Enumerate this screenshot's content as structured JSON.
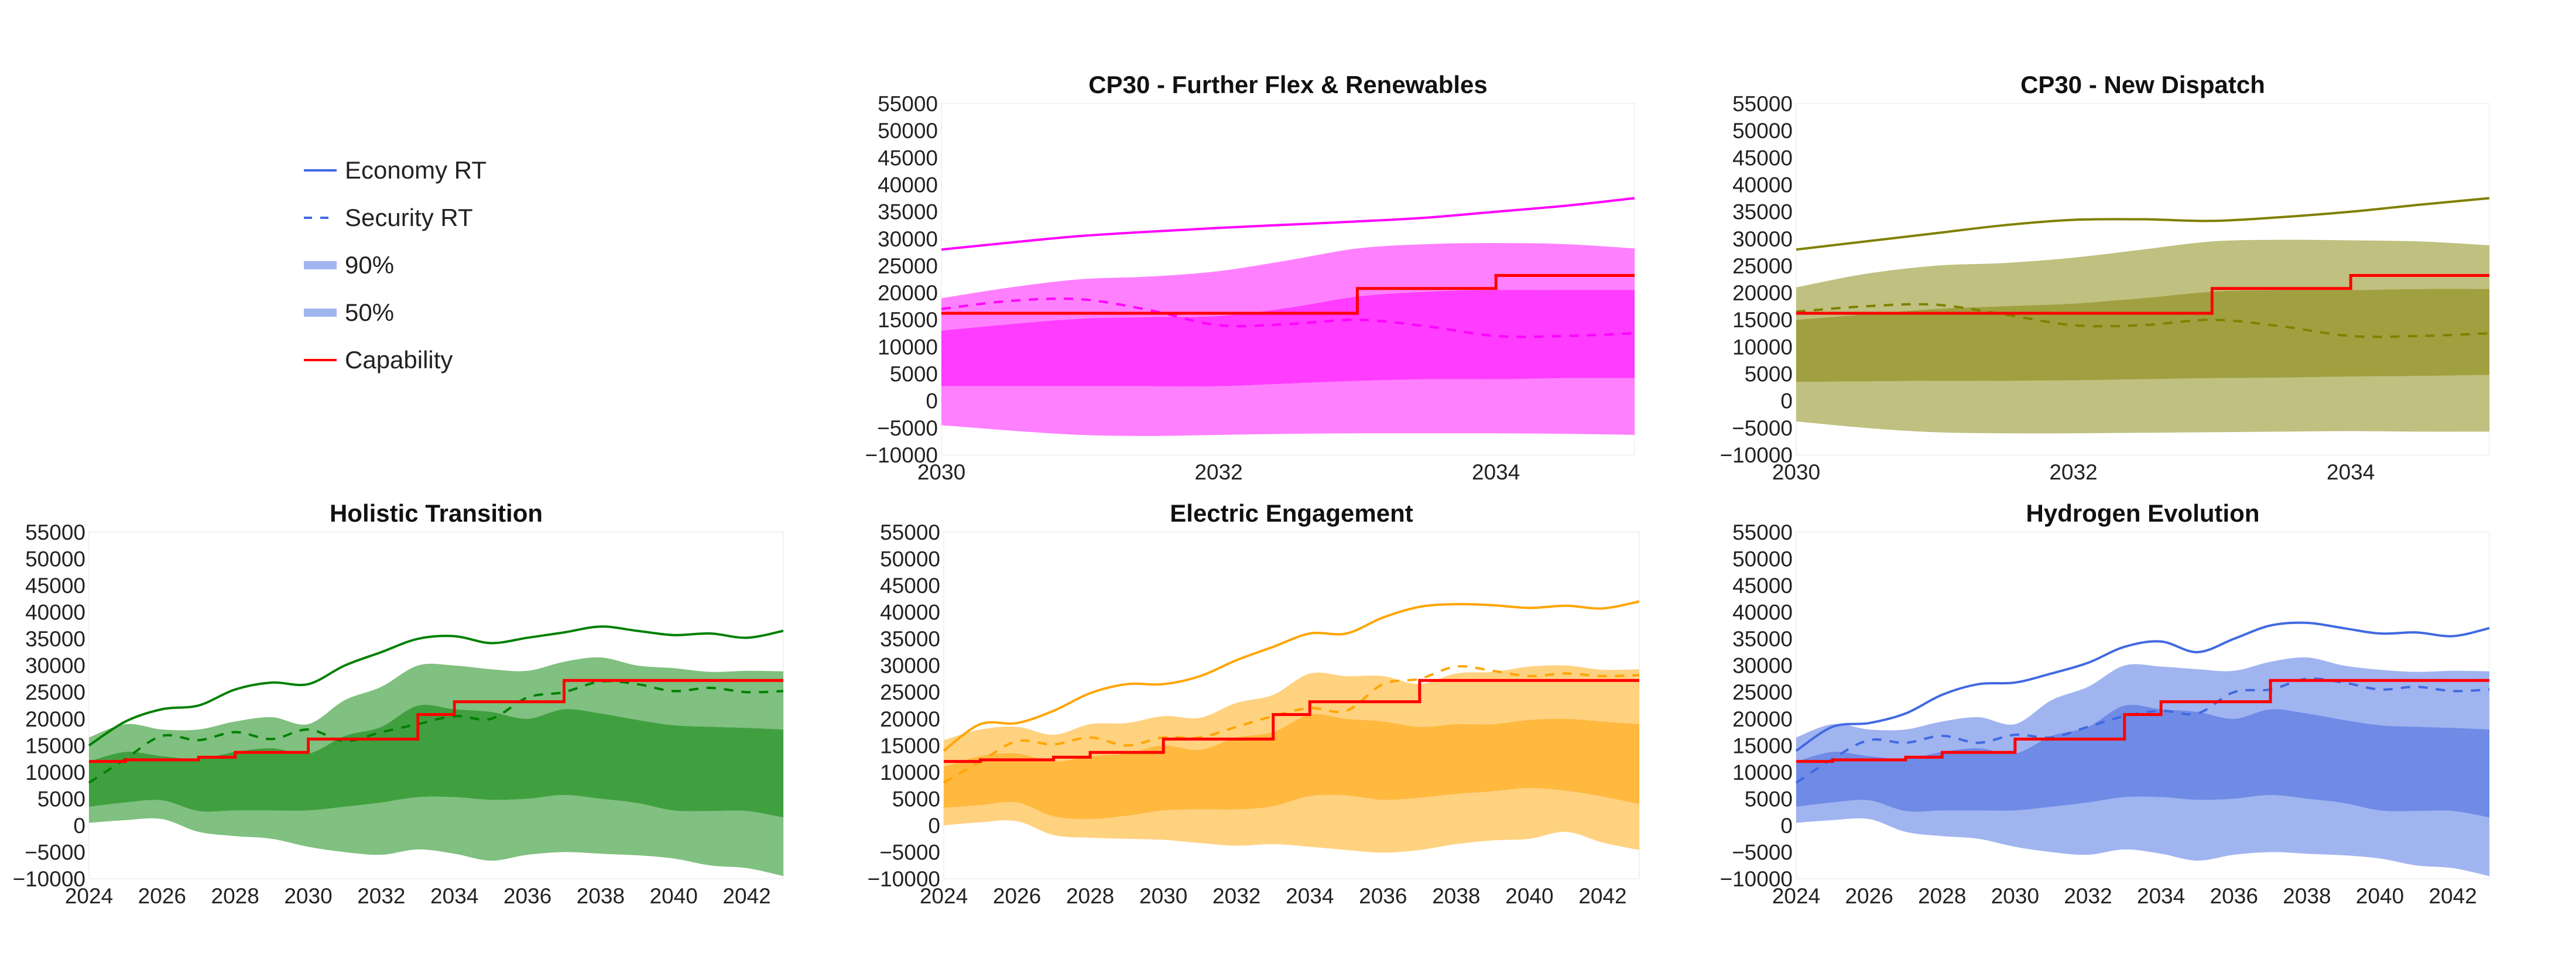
{
  "legend": {
    "swatch_color": "#4169e1",
    "band_color": "#a0b4f0",
    "capability_color": "#ff0000",
    "items": [
      {
        "label": "Economy RT",
        "style": "solid-line"
      },
      {
        "label": "Security RT",
        "style": "dashed-line"
      },
      {
        "label": "90%",
        "style": "band"
      },
      {
        "label": "50%",
        "style": "band"
      },
      {
        "label": "Capability",
        "style": "step-line"
      }
    ]
  },
  "chart_data": [
    {
      "type": "area",
      "title": "CP30 - Further Flex & Renewables",
      "color": "#ff00ff",
      "band90_color": "#ff80ff",
      "band50_color": "#ff3cff",
      "xlim": [
        2030,
        2035
      ],
      "ylim": [
        -10000,
        55000
      ],
      "xticks": [
        "2030",
        "2032",
        "2034"
      ],
      "yticks": [
        "55000",
        "50000",
        "45000",
        "40000",
        "35000",
        "30000",
        "25000",
        "20000",
        "15000",
        "10000",
        "5000",
        "0",
        "−5000",
        "−10000"
      ],
      "x": [
        2030,
        2030.5,
        2031,
        2031.5,
        2032,
        2032.5,
        2033,
        2033.5,
        2034,
        2034.5,
        2035
      ],
      "economy_rt": [
        28000,
        29300,
        30500,
        31300,
        32000,
        32600,
        33200,
        33900,
        35000,
        36100,
        37500
      ],
      "security_rt": [
        17000,
        18500,
        18800,
        16800,
        14000,
        14200,
        15000,
        13800,
        12000,
        12000,
        12500
      ],
      "band90_upper": [
        19000,
        21000,
        22500,
        23000,
        24000,
        26000,
        28200,
        29000,
        29200,
        29000,
        28200
      ],
      "band50_upper": [
        13000,
        14200,
        15200,
        15500,
        15700,
        17200,
        19300,
        20200,
        20500,
        20500,
        20500
      ],
      "band50_lower": [
        2700,
        2700,
        2700,
        2700,
        2700,
        3200,
        3700,
        4000,
        4000,
        4200,
        4200
      ],
      "band90_lower": [
        -4500,
        -5500,
        -6300,
        -6500,
        -6300,
        -6100,
        -6000,
        -6000,
        -6000,
        -6100,
        -6300
      ],
      "capability": {
        "x": [
          2030,
          2033,
          2034,
          2035
        ],
        "values": [
          16200,
          20800,
          23200,
          23200
        ]
      }
    },
    {
      "type": "area",
      "title": "CP30 - New Dispatch",
      "color": "#808000",
      "band90_color": "#c0c080",
      "band50_color": "#a0a040",
      "xlim": [
        2030,
        2035
      ],
      "ylim": [
        -10000,
        55000
      ],
      "xticks": [
        "2030",
        "2032",
        "2034"
      ],
      "yticks": [
        "55000",
        "50000",
        "45000",
        "40000",
        "35000",
        "30000",
        "25000",
        "20000",
        "15000",
        "10000",
        "5000",
        "0",
        "−5000",
        "−10000"
      ],
      "x": [
        2030,
        2030.5,
        2031,
        2031.5,
        2032,
        2032.5,
        2033,
        2033.5,
        2034,
        2034.5,
        2035
      ],
      "economy_rt": [
        28000,
        29500,
        31000,
        32500,
        33500,
        33600,
        33300,
        34000,
        35000,
        36300,
        37500
      ],
      "security_rt": [
        16500,
        17500,
        17800,
        16000,
        14000,
        14000,
        15000,
        13800,
        12000,
        12000,
        12500
      ],
      "band90_upper": [
        21000,
        23500,
        25000,
        25500,
        26500,
        28000,
        29500,
        29800,
        29700,
        29500,
        28800
      ],
      "band50_upper": [
        15000,
        16000,
        17000,
        17500,
        18000,
        19000,
        20200,
        20500,
        20500,
        20700,
        20700
      ],
      "band50_lower": [
        3500,
        3600,
        3700,
        3700,
        3800,
        4000,
        4200,
        4300,
        4500,
        4600,
        4800
      ],
      "band90_lower": [
        -3800,
        -5000,
        -5800,
        -6000,
        -6000,
        -5900,
        -5800,
        -5700,
        -5600,
        -5700,
        -5700
      ],
      "capability": {
        "x": [
          2030,
          2033,
          2034,
          2035
        ],
        "values": [
          16200,
          20800,
          23200,
          23200
        ]
      }
    },
    {
      "type": "area",
      "title": "Holistic Transition",
      "color": "#008000",
      "band90_color": "#80c080",
      "band50_color": "#40a040",
      "xlim": [
        2024,
        2043
      ],
      "ylim": [
        -10000,
        55000
      ],
      "xticks": [
        "2024",
        "2026",
        "2028",
        "2030",
        "2032",
        "2034",
        "2036",
        "2038",
        "2040",
        "2042"
      ],
      "yticks": [
        "55000",
        "50000",
        "45000",
        "40000",
        "35000",
        "30000",
        "25000",
        "20000",
        "15000",
        "10000",
        "5000",
        "0",
        "−5000",
        "−10000"
      ],
      "x": [
        2024,
        2025,
        2026,
        2027,
        2028,
        2029,
        2030,
        2031,
        2032,
        2033,
        2034,
        2035,
        2036,
        2037,
        2038,
        2039,
        2040,
        2041,
        2042,
        2043
      ],
      "economy_rt": [
        15000,
        19500,
        21800,
        22500,
        25500,
        26800,
        26500,
        30000,
        32500,
        35000,
        35500,
        34200,
        35200,
        36200,
        37300,
        36500,
        35700,
        36000,
        35200,
        36500
      ],
      "security_rt": [
        8000,
        12500,
        16800,
        16000,
        17500,
        16200,
        18000,
        15800,
        17500,
        19000,
        20500,
        20000,
        24000,
        25000,
        27000,
        26500,
        25200,
        25800,
        25000,
        25200
      ],
      "band90_upper": [
        16500,
        19000,
        18000,
        18000,
        19500,
        20300,
        19000,
        23500,
        26000,
        30000,
        30000,
        29300,
        29000,
        30700,
        31500,
        30000,
        29500,
        28800,
        29000,
        28900
      ],
      "band50_upper": [
        12000,
        13800,
        13000,
        12500,
        13800,
        14500,
        13500,
        16800,
        18500,
        22500,
        21800,
        21300,
        20000,
        21800,
        21000,
        19800,
        18800,
        18500,
        18300,
        18000
      ],
      "band50_lower": [
        3500,
        4300,
        4700,
        2700,
        2800,
        2800,
        2800,
        3500,
        4300,
        5300,
        5300,
        4800,
        5000,
        5700,
        5000,
        4200,
        2800,
        2700,
        2700,
        1500
      ],
      "band90_lower": [
        500,
        1000,
        1200,
        -1200,
        -2000,
        -2500,
        -4000,
        -5000,
        -5500,
        -4500,
        -5300,
        -6600,
        -5500,
        -5000,
        -5300,
        -5600,
        -6200,
        -7500,
        -8000,
        -9500
      ],
      "capability": {
        "x": [
          2024,
          2025,
          2027,
          2028,
          2030,
          2033,
          2034,
          2037,
          2043
        ],
        "values": [
          12000,
          12300,
          12800,
          13700,
          16200,
          20800,
          23200,
          27200,
          27200
        ]
      }
    },
    {
      "type": "area",
      "title": "Electric Engagement",
      "color": "#ffa500",
      "band90_color": "#ffd280",
      "band50_color": "#ffb93f",
      "xlim": [
        2024,
        2043
      ],
      "ylim": [
        -10000,
        55000
      ],
      "xticks": [
        "2024",
        "2026",
        "2028",
        "2030",
        "2032",
        "2034",
        "2036",
        "2038",
        "2040",
        "2042"
      ],
      "yticks": [
        "55000",
        "50000",
        "45000",
        "40000",
        "35000",
        "30000",
        "25000",
        "20000",
        "15000",
        "10000",
        "5000",
        "0",
        "−5000",
        "−10000"
      ],
      "x": [
        2024,
        2025,
        2026,
        2027,
        2028,
        2029,
        2030,
        2031,
        2032,
        2033,
        2034,
        2035,
        2036,
        2037,
        2038,
        2039,
        2040,
        2041,
        2042,
        2043
      ],
      "economy_rt": [
        14000,
        19000,
        19200,
        21500,
        24800,
        26500,
        26500,
        28000,
        31000,
        33500,
        36000,
        36000,
        39000,
        41000,
        41500,
        41300,
        40800,
        41200,
        40700,
        42000
      ],
      "security_rt": [
        8000,
        12000,
        15800,
        15200,
        16500,
        15000,
        16500,
        16500,
        18500,
        20500,
        22000,
        21500,
        26500,
        27500,
        29800,
        29000,
        28000,
        28500,
        28000,
        28200
      ],
      "band90_upper": [
        16000,
        18000,
        18500,
        17000,
        19000,
        19200,
        20500,
        20200,
        23000,
        24500,
        28500,
        28000,
        28000,
        26500,
        28500,
        28800,
        29800,
        30000,
        29200,
        29300
      ],
      "band50_upper": [
        11000,
        13000,
        13500,
        12000,
        13000,
        13500,
        15000,
        14200,
        16500,
        17500,
        20800,
        20000,
        19500,
        18500,
        19000,
        19000,
        19800,
        20000,
        19500,
        19000
      ],
      "band50_lower": [
        3300,
        3800,
        4300,
        1700,
        1200,
        1800,
        2800,
        3000,
        3000,
        3600,
        5500,
        5600,
        4800,
        5200,
        5900,
        6400,
        7000,
        6500,
        5400,
        4000
      ],
      "band90_lower": [
        0,
        600,
        800,
        -1800,
        -2300,
        -2500,
        -2700,
        -3300,
        -3800,
        -3500,
        -4000,
        -4600,
        -5100,
        -4600,
        -3500,
        -2800,
        -2500,
        -1200,
        -3200,
        -4600
      ],
      "capability": {
        "x": [
          2024,
          2025,
          2027,
          2028,
          2030,
          2033,
          2034,
          2037,
          2043
        ],
        "values": [
          12000,
          12300,
          12800,
          13700,
          16200,
          20800,
          23200,
          27200,
          27200
        ]
      }
    },
    {
      "type": "area",
      "title": "Hydrogen Evolution",
      "color": "#4169e1",
      "band90_color": "#a0b4f0",
      "band50_color": "#6f8be6",
      "xlim": [
        2024,
        2043
      ],
      "ylim": [
        -10000,
        55000
      ],
      "xticks": [
        "2024",
        "2026",
        "2028",
        "2030",
        "2032",
        "2034",
        "2036",
        "2038",
        "2040",
        "2042"
      ],
      "yticks": [
        "55000",
        "50000",
        "45000",
        "40000",
        "35000",
        "30000",
        "25000",
        "20000",
        "15000",
        "10000",
        "5000",
        "0",
        "−5000",
        "−10000"
      ],
      "x": [
        2024,
        2025,
        2026,
        2027,
        2028,
        2029,
        2030,
        2031,
        2032,
        2033,
        2034,
        2035,
        2036,
        2037,
        2038,
        2039,
        2040,
        2041,
        2042,
        2043
      ],
      "economy_rt": [
        14000,
        18500,
        19200,
        21000,
        24500,
        26500,
        26800,
        28500,
        30500,
        33500,
        34500,
        32500,
        35000,
        37500,
        38000,
        37000,
        36000,
        36200,
        35500,
        37000
      ],
      "security_rt": [
        8000,
        12500,
        16000,
        15500,
        16800,
        15500,
        17000,
        16500,
        18500,
        20500,
        21500,
        21000,
        25000,
        25500,
        27500,
        26800,
        25500,
        26000,
        25200,
        25500
      ],
      "band90_upper": [
        16500,
        19000,
        18000,
        18000,
        19500,
        20300,
        19000,
        23500,
        26000,
        30000,
        29800,
        29300,
        29000,
        30700,
        31500,
        30000,
        29200,
        28800,
        29000,
        28900
      ],
      "band50_upper": [
        12000,
        13800,
        13000,
        12500,
        13800,
        14500,
        13500,
        16800,
        18500,
        22500,
        21800,
        21300,
        20000,
        21800,
        21000,
        19800,
        18800,
        18500,
        18300,
        18000
      ],
      "band50_lower": [
        3500,
        4300,
        4700,
        2700,
        2800,
        2800,
        2800,
        3500,
        4300,
        5300,
        5300,
        4800,
        5000,
        5700,
        5000,
        4200,
        2800,
        2700,
        2700,
        1500
      ],
      "band90_lower": [
        500,
        1000,
        1200,
        -1200,
        -2000,
        -2500,
        -4000,
        -5000,
        -5500,
        -4500,
        -5300,
        -6600,
        -5500,
        -5000,
        -5300,
        -5600,
        -6200,
        -7500,
        -8000,
        -9500
      ],
      "capability": {
        "x": [
          2024,
          2025,
          2027,
          2028,
          2030,
          2033,
          2034,
          2037,
          2043
        ],
        "values": [
          12000,
          12300,
          12800,
          13700,
          16200,
          20800,
          23200,
          27200,
          27200
        ]
      }
    }
  ]
}
